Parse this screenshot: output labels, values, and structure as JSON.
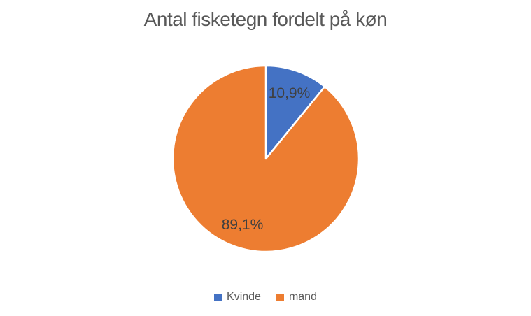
{
  "chart_data": {
    "type": "pie",
    "title": "Antal fisketegn fordelt på køn",
    "categories": [
      "Kvinde",
      "mand"
    ],
    "values": [
      10.9,
      89.1
    ],
    "data_labels": [
      "10,9%",
      "89,1%"
    ],
    "colors": [
      "#4472C4",
      "#ED7D31"
    ],
    "slice_border_color": "#FFFFFF",
    "label_color": "#404040",
    "title_color": "#595959",
    "legend_text_color": "#595959",
    "legend_position": "bottom",
    "start_angle_deg": 0,
    "direction": "clockwise",
    "background": "#FFFFFF"
  }
}
